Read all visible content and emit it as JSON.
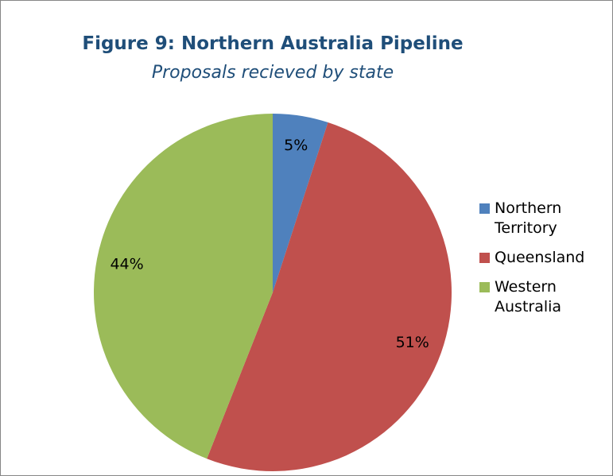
{
  "chart_data": {
    "type": "pie",
    "title": "Figure 9: Northern Australia Pipeline",
    "subtitle": "Proposals recieved by state",
    "categories": [
      "Northern Territory",
      "Queensland",
      "Western Australia"
    ],
    "values": [
      5,
      51,
      44
    ],
    "value_labels": [
      "5%",
      "51%",
      "44%"
    ],
    "colors": [
      "#4f81bd",
      "#c0504d",
      "#9bbb59"
    ],
    "legend": "right"
  }
}
